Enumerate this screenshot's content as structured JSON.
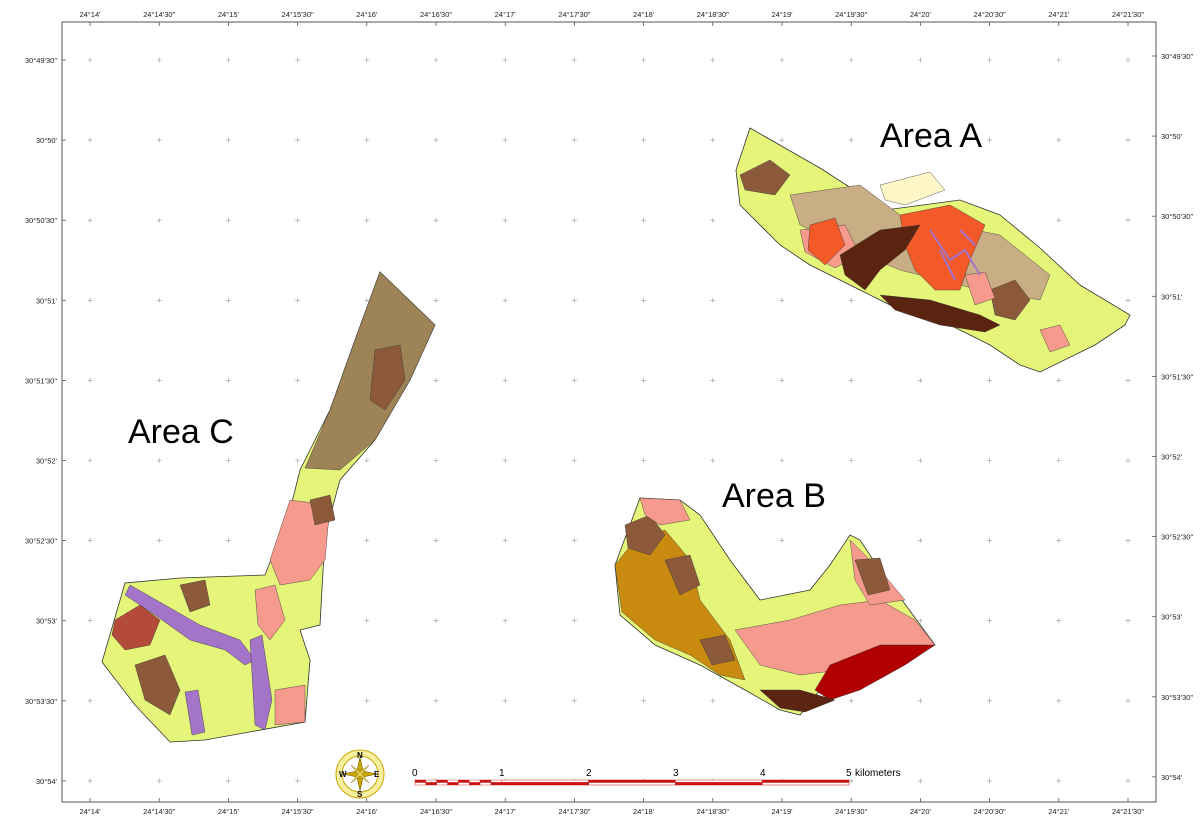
{
  "frame": {
    "top_ticks": [
      "24°14'",
      "24°14'30\"",
      "24°15'",
      "24°15'30\"",
      "24°16'",
      "24°16'30\"",
      "24°17'",
      "24°17'30\"",
      "24°18'",
      "24°18'30\"",
      "24°19'",
      "24°19'30\"",
      "24°20'",
      "24°20'30\"",
      "24°21'",
      "24°21'30\""
    ],
    "bottom_ticks": [
      "24°14'",
      "24°14'30\"",
      "24°15'",
      "24°15'30\"",
      "24°16'",
      "24°16'30\"",
      "24°17'",
      "24°17'30\"",
      "24°18'",
      "24°18'30\"",
      "24°19'",
      "24°19'30\"",
      "24°20'",
      "24°20'30\"",
      "24°21'",
      "24°21'30\""
    ],
    "left_ticks": [
      "30°49'30\"",
      "30°50'",
      "30°50'30\"",
      "30°51'",
      "30°51'30\"",
      "30°52'",
      "30°52'30\"",
      "30°53'",
      "30°53'30\"",
      "30°54'"
    ],
    "right_ticks": [
      "30°49'30\"",
      "30°50'",
      "30°50'30\"",
      "30°51'",
      "30°51'30\"",
      "30°52'",
      "30°52'30\"",
      "30°53'",
      "30°53'30\"",
      "30°54'"
    ]
  },
  "areas": {
    "a": "Area A",
    "b": "Area B",
    "c": "Area  C"
  },
  "compass": {
    "n": "N",
    "s": "S",
    "e": "E",
    "w": "W"
  },
  "scale_bar": {
    "labels": [
      "0",
      "1",
      "2",
      "3",
      "4",
      "5"
    ],
    "unit": "kilometers"
  },
  "colors": {
    "light_green": "#e5f57a",
    "pink": "#f59a8c",
    "tan": "#c9ad85",
    "brown": "#8c5a3a",
    "dark_brown": "#5a2410",
    "orange_red": "#f4592a",
    "purple": "#a474c8",
    "ochre": "#c98a10",
    "dark_red": "#b00000",
    "olive_brown": "#9e8356",
    "cream": "#fff7c8",
    "scale_red": "#cc1111"
  }
}
